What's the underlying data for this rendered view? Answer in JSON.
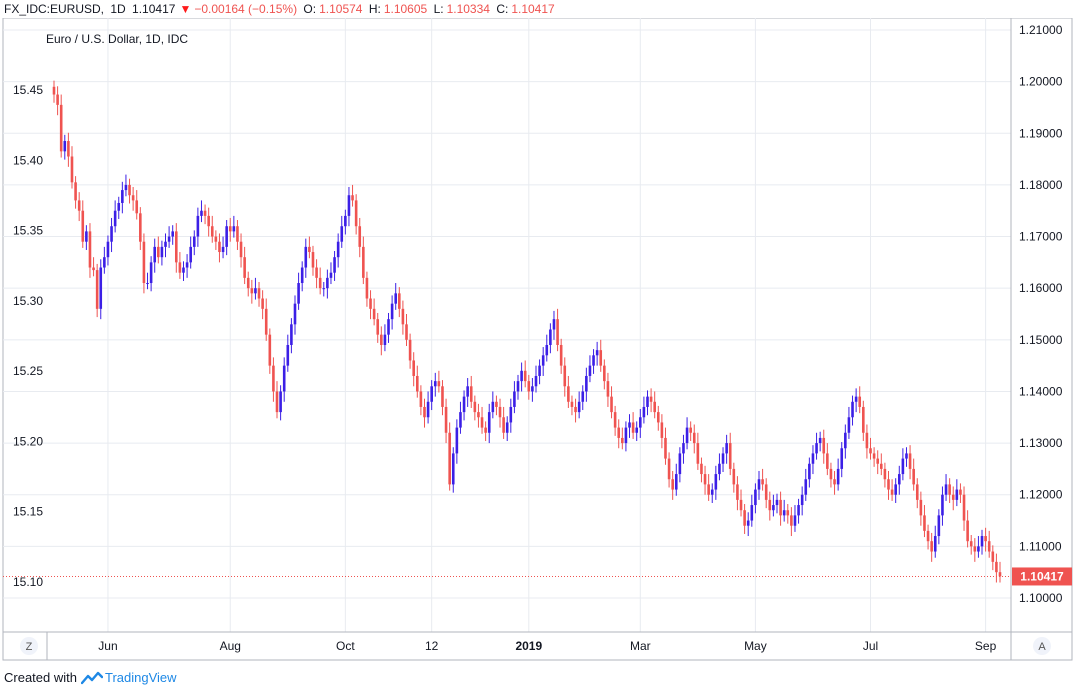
{
  "header": {
    "symbol": "FX_IDC:EURUSD,",
    "interval": "1D",
    "last": "1.10417",
    "change": "−0.00164 (−0.15%)",
    "o_label": "O:",
    "o_value": "1.10574",
    "h_label": "H:",
    "h_value": "1.10605",
    "l_label": "L:",
    "l_value": "1.10334",
    "c_label": "C:",
    "c_value": "1.10417"
  },
  "footer": {
    "created_with": "Created with",
    "brand": "TradingView"
  },
  "buttons": {
    "left": "Z",
    "right": "A"
  },
  "colors": {
    "up": "#3b1fe6",
    "down": "#ef5350",
    "grid": "#e8ebf0",
    "axis_line": "#b2b5be",
    "last_label_bg": "#ef5350",
    "last_line": "#ef5350"
  },
  "chart_data": {
    "type": "candlestick",
    "legend": "Euro / U.S. Dollar, 1D, IDC",
    "right_axis": {
      "ticks": [
        "1.21000",
        "1.20000",
        "1.19000",
        "1.18000",
        "1.17000",
        "1.16000",
        "1.15000",
        "1.14000",
        "1.13000",
        "1.12000",
        "1.11000",
        "1.10000"
      ],
      "range": [
        1.1,
        1.21
      ]
    },
    "left_axis": {
      "ticks": [
        "15.45",
        "15.40",
        "15.35",
        "15.30",
        "15.25",
        "15.20",
        "15.15",
        "15.10"
      ],
      "range": [
        15.1,
        15.45
      ]
    },
    "x_ticks": [
      "Jun",
      "Aug",
      "Oct",
      "12",
      "2019",
      "Mar",
      "May",
      "Jul",
      "Sep"
    ],
    "last_price": "1.10417",
    "last_value": 1.10417,
    "series": [
      1.1975,
      1.1955,
      1.1865,
      1.1885,
      1.1855,
      1.1805,
      1.177,
      1.175,
      1.169,
      1.171,
      1.164,
      1.1635,
      1.156,
      1.164,
      1.166,
      1.169,
      1.172,
      1.175,
      1.1765,
      1.179,
      1.18,
      1.178,
      1.177,
      1.1745,
      1.169,
      1.161,
      1.161,
      1.165,
      1.168,
      1.166,
      1.168,
      1.169,
      1.17,
      1.171,
      1.165,
      1.163,
      1.164,
      1.165,
      1.168,
      1.17,
      1.174,
      1.175,
      1.174,
      1.172,
      1.17,
      1.169,
      1.167,
      1.168,
      1.172,
      1.171,
      1.172,
      1.169,
      1.166,
      1.162,
      1.16,
      1.159,
      1.16,
      1.158,
      1.156,
      1.151,
      1.145,
      1.14,
      1.136,
      1.14,
      1.145,
      1.149,
      1.153,
      1.157,
      1.161,
      1.164,
      1.168,
      1.167,
      1.164,
      1.162,
      1.16,
      1.16,
      1.162,
      1.163,
      1.166,
      1.169,
      1.172,
      1.174,
      1.178,
      1.177,
      1.172,
      1.168,
      1.162,
      1.158,
      1.156,
      1.154,
      1.151,
      1.149,
      1.151,
      1.154,
      1.157,
      1.159,
      1.156,
      1.153,
      1.15,
      1.146,
      1.143,
      1.14,
      1.137,
      1.135,
      1.138,
      1.141,
      1.142,
      1.141,
      1.137,
      1.132,
      1.122,
      1.128,
      1.133,
      1.136,
      1.139,
      1.141,
      1.138,
      1.136,
      1.135,
      1.133,
      1.132,
      1.136,
      1.138,
      1.137,
      1.135,
      1.132,
      1.134,
      1.137,
      1.14,
      1.142,
      1.144,
      1.142,
      1.14,
      1.141,
      1.143,
      1.145,
      1.147,
      1.149,
      1.152,
      1.154,
      1.149,
      1.145,
      1.141,
      1.138,
      1.137,
      1.136,
      1.138,
      1.14,
      1.143,
      1.145,
      1.147,
      1.148,
      1.145,
      1.142,
      1.139,
      1.136,
      1.133,
      1.131,
      1.13,
      1.133,
      1.134,
      1.132,
      1.133,
      1.135,
      1.137,
      1.139,
      1.138,
      1.136,
      1.134,
      1.131,
      1.127,
      1.123,
      1.121,
      1.124,
      1.128,
      1.13,
      1.133,
      1.132,
      1.13,
      1.126,
      1.124,
      1.122,
      1.12,
      1.121,
      1.124,
      1.126,
      1.128,
      1.13,
      1.125,
      1.122,
      1.119,
      1.117,
      1.114,
      1.115,
      1.118,
      1.121,
      1.123,
      1.122,
      1.119,
      1.117,
      1.118,
      1.119,
      1.116,
      1.117,
      1.116,
      1.114,
      1.116,
      1.118,
      1.12,
      1.123,
      1.126,
      1.128,
      1.13,
      1.131,
      1.128,
      1.125,
      1.123,
      1.122,
      1.125,
      1.129,
      1.132,
      1.135,
      1.138,
      1.139,
      1.137,
      1.132,
      1.129,
      1.128,
      1.127,
      1.126,
      1.125,
      1.123,
      1.121,
      1.12,
      1.122,
      1.124,
      1.127,
      1.128,
      1.125,
      1.122,
      1.119,
      1.116,
      1.113,
      1.111,
      1.109,
      1.112,
      1.116,
      1.12,
      1.122,
      1.12,
      1.119,
      1.121,
      1.12,
      1.115,
      1.111,
      1.11,
      1.109,
      1.11,
      1.112,
      1.111,
      1.109,
      1.107,
      1.105,
      1.1042
    ],
    "x_tick_index": [
      8,
      26,
      43,
      56,
      70,
      87,
      104,
      121,
      138
    ]
  }
}
